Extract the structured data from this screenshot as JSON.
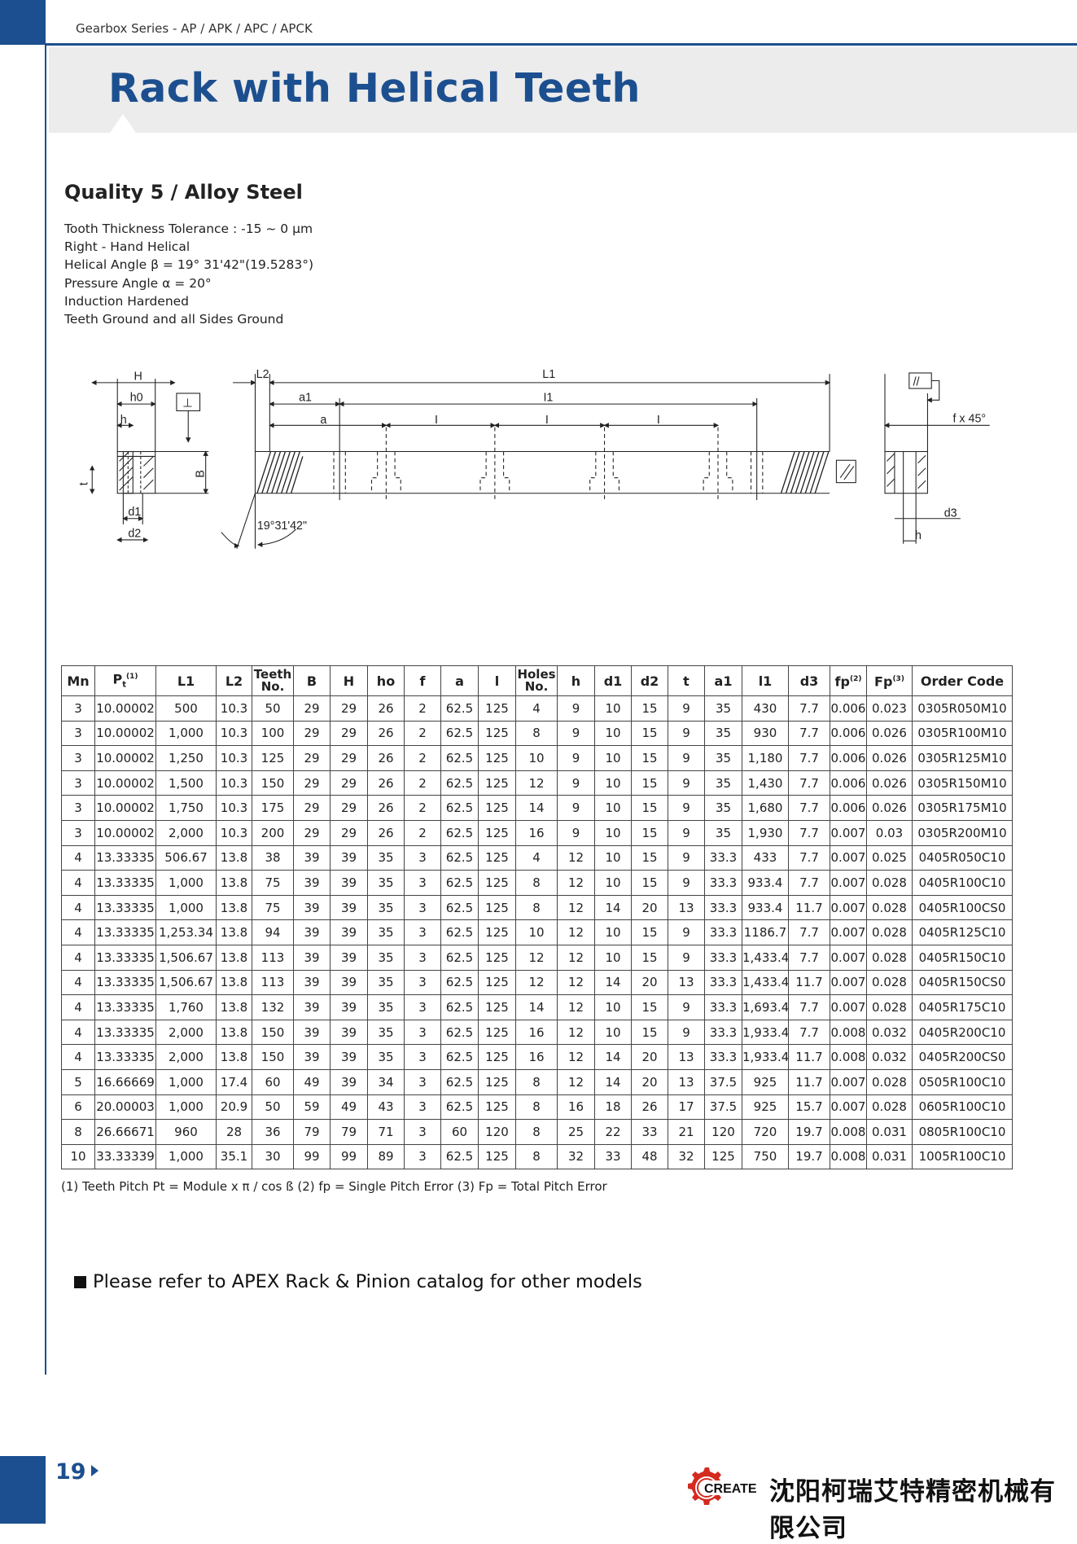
{
  "header": {
    "series": "Gearbox Series - AP / APK / APC / APCK",
    "title": "Rack with Helical  Teeth"
  },
  "section": {
    "heading": "Quality 5 / Alloy Steel",
    "specs": [
      "Tooth Thickness Tolerance : -15 ~ 0 µm",
      "Right - Hand Helical",
      "Helical Angle β = 19° 31'42\"(19.5283°)",
      "Pressure Angle α = 20°",
      "Induction Hardened",
      "Teeth Ground and all Sides Ground"
    ]
  },
  "drawing": {
    "labels": {
      "H": "H",
      "h0": "h0",
      "h_left": "h",
      "t": "t",
      "B": "B",
      "d1": "d1",
      "d2": "d2",
      "L2": "L2",
      "L1": "L1",
      "a1": "a1",
      "l1": "I1",
      "a": "a",
      "l": "I",
      "angle": "19°31'42\"",
      "chamfer": "f x 45°",
      "d3": "d3",
      "h_right": "h",
      "perp_symbol": "⊥",
      "parallel_symbol": "//"
    }
  },
  "table": {
    "headers": [
      {
        "main": "Mn"
      },
      {
        "main": "P",
        "sub": "t",
        "sup": "(1)"
      },
      {
        "main": "L1"
      },
      {
        "main": "L2"
      },
      {
        "main": "Teeth",
        "line2": "No."
      },
      {
        "main": "B"
      },
      {
        "main": "H"
      },
      {
        "main": "ho"
      },
      {
        "main": "f"
      },
      {
        "main": "a"
      },
      {
        "main": "l"
      },
      {
        "main": "Holes",
        "line2": "No."
      },
      {
        "main": "h"
      },
      {
        "main": "d1"
      },
      {
        "main": "d2"
      },
      {
        "main": "t"
      },
      {
        "main": "a1"
      },
      {
        "main": "l1"
      },
      {
        "main": "d3"
      },
      {
        "main": "fp",
        "sup": "(2)"
      },
      {
        "main": "Fp",
        "sup": "(3)"
      },
      {
        "main": "Order Code"
      }
    ],
    "rows": [
      [
        "3",
        "10.00002",
        "500",
        "10.3",
        "50",
        "29",
        "29",
        "26",
        "2",
        "62.5",
        "125",
        "4",
        "9",
        "10",
        "15",
        "9",
        "35",
        "430",
        "7.7",
        "0.006",
        "0.023",
        "0305R050M10"
      ],
      [
        "3",
        "10.00002",
        "1,000",
        "10.3",
        "100",
        "29",
        "29",
        "26",
        "2",
        "62.5",
        "125",
        "8",
        "9",
        "10",
        "15",
        "9",
        "35",
        "930",
        "7.7",
        "0.006",
        "0.026",
        "0305R100M10"
      ],
      [
        "3",
        "10.00002",
        "1,250",
        "10.3",
        "125",
        "29",
        "29",
        "26",
        "2",
        "62.5",
        "125",
        "10",
        "9",
        "10",
        "15",
        "9",
        "35",
        "1,180",
        "7.7",
        "0.006",
        "0.026",
        "0305R125M10"
      ],
      [
        "3",
        "10.00002",
        "1,500",
        "10.3",
        "150",
        "29",
        "29",
        "26",
        "2",
        "62.5",
        "125",
        "12",
        "9",
        "10",
        "15",
        "9",
        "35",
        "1,430",
        "7.7",
        "0.006",
        "0.026",
        "0305R150M10"
      ],
      [
        "3",
        "10.00002",
        "1,750",
        "10.3",
        "175",
        "29",
        "29",
        "26",
        "2",
        "62.5",
        "125",
        "14",
        "9",
        "10",
        "15",
        "9",
        "35",
        "1,680",
        "7.7",
        "0.006",
        "0.026",
        "0305R175M10"
      ],
      [
        "3",
        "10.00002",
        "2,000",
        "10.3",
        "200",
        "29",
        "29",
        "26",
        "2",
        "62.5",
        "125",
        "16",
        "9",
        "10",
        "15",
        "9",
        "35",
        "1,930",
        "7.7",
        "0.007",
        "0.03",
        "0305R200M10"
      ],
      [
        "4",
        "13.33335",
        "506.67",
        "13.8",
        "38",
        "39",
        "39",
        "35",
        "3",
        "62.5",
        "125",
        "4",
        "12",
        "10",
        "15",
        "9",
        "33.3",
        "433",
        "7.7",
        "0.007",
        "0.025",
        "0405R050C10"
      ],
      [
        "4",
        "13.33335",
        "1,000",
        "13.8",
        "75",
        "39",
        "39",
        "35",
        "3",
        "62.5",
        "125",
        "8",
        "12",
        "10",
        "15",
        "9",
        "33.3",
        "933.4",
        "7.7",
        "0.007",
        "0.028",
        "0405R100C10"
      ],
      [
        "4",
        "13.33335",
        "1,000",
        "13.8",
        "75",
        "39",
        "39",
        "35",
        "3",
        "62.5",
        "125",
        "8",
        "12",
        "14",
        "20",
        "13",
        "33.3",
        "933.4",
        "11.7",
        "0.007",
        "0.028",
        "0405R100CS0"
      ],
      [
        "4",
        "13.33335",
        "1,253.34",
        "13.8",
        "94",
        "39",
        "39",
        "35",
        "3",
        "62.5",
        "125",
        "10",
        "12",
        "10",
        "15",
        "9",
        "33.3",
        "1186.7",
        "7.7",
        "0.007",
        "0.028",
        "0405R125C10"
      ],
      [
        "4",
        "13.33335",
        "1,506.67",
        "13.8",
        "113",
        "39",
        "39",
        "35",
        "3",
        "62.5",
        "125",
        "12",
        "12",
        "10",
        "15",
        "9",
        "33.3",
        "1,433.4",
        "7.7",
        "0.007",
        "0.028",
        "0405R150C10"
      ],
      [
        "4",
        "13.33335",
        "1,506.67",
        "13.8",
        "113",
        "39",
        "39",
        "35",
        "3",
        "62.5",
        "125",
        "12",
        "12",
        "14",
        "20",
        "13",
        "33.3",
        "1,433.4",
        "11.7",
        "0.007",
        "0.028",
        "0405R150CS0"
      ],
      [
        "4",
        "13.33335",
        "1,760",
        "13.8",
        "132",
        "39",
        "39",
        "35",
        "3",
        "62.5",
        "125",
        "14",
        "12",
        "10",
        "15",
        "9",
        "33.3",
        "1,693.4",
        "7.7",
        "0.007",
        "0.028",
        "0405R175C10"
      ],
      [
        "4",
        "13.33335",
        "2,000",
        "13.8",
        "150",
        "39",
        "39",
        "35",
        "3",
        "62.5",
        "125",
        "16",
        "12",
        "10",
        "15",
        "9",
        "33.3",
        "1,933.4",
        "7.7",
        "0.008",
        "0.032",
        "0405R200C10"
      ],
      [
        "4",
        "13.33335",
        "2,000",
        "13.8",
        "150",
        "39",
        "39",
        "35",
        "3",
        "62.5",
        "125",
        "16",
        "12",
        "14",
        "20",
        "13",
        "33.3",
        "1,933.4",
        "11.7",
        "0.008",
        "0.032",
        "0405R200CS0"
      ],
      [
        "5",
        "16.66669",
        "1,000",
        "17.4",
        "60",
        "49",
        "39",
        "34",
        "3",
        "62.5",
        "125",
        "8",
        "12",
        "14",
        "20",
        "13",
        "37.5",
        "925",
        "11.7",
        "0.007",
        "0.028",
        "0505R100C10"
      ],
      [
        "6",
        "20.00003",
        "1,000",
        "20.9",
        "50",
        "59",
        "49",
        "43",
        "3",
        "62.5",
        "125",
        "8",
        "16",
        "18",
        "26",
        "17",
        "37.5",
        "925",
        "15.7",
        "0.007",
        "0.028",
        "0605R100C10"
      ],
      [
        "8",
        "26.66671",
        "960",
        "28",
        "36",
        "79",
        "79",
        "71",
        "3",
        "60",
        "120",
        "8",
        "25",
        "22",
        "33",
        "21",
        "120",
        "720",
        "19.7",
        "0.008",
        "0.031",
        "0805R100C10"
      ],
      [
        "10",
        "33.33339",
        "1,000",
        "35.1",
        "30",
        "99",
        "99",
        "89",
        "3",
        "62.5",
        "125",
        "8",
        "32",
        "33",
        "48",
        "32",
        "125",
        "750",
        "19.7",
        "0.008",
        "0.031",
        "1005R100C10"
      ]
    ],
    "footnote": "(1) Teeth Pitch Pt = Module x π / cos ß   (2) fp = Single Pitch Error  (3) Fp = Total Pitch Error"
  },
  "note": "Please refer to APEX Rack & Pinion catalog for other models",
  "footer": {
    "page_number": "19",
    "logo_text": "CREATE",
    "company": "沈阳柯瑞艾特精密机械有限公司"
  },
  "colors": {
    "brand_blue": "#1c4f8f",
    "band_gray": "#ececec",
    "logo_red": "#d42a1f"
  }
}
